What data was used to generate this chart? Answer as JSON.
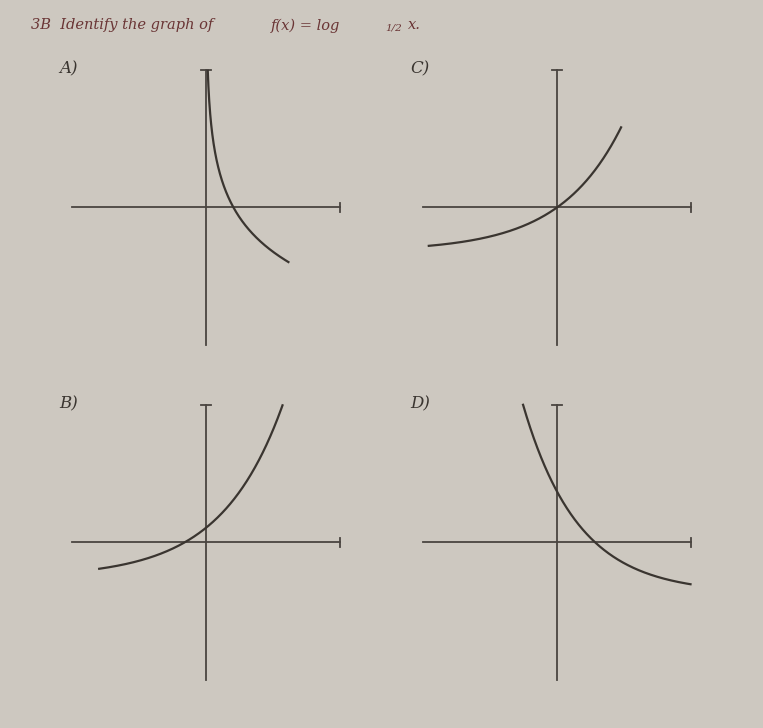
{
  "bg_color": "#cdc8c0",
  "curve_color": "#3a3530",
  "axis_color": "#4a4540",
  "title_line1": "3B  Identify the graph of f(x) = log",
  "title_sub": "1/2",
  "title_line2": "x.",
  "title_color": "#6a3535",
  "label_color": "#3a3530",
  "figsize": [
    7.63,
    7.28
  ],
  "panels": [
    {
      "label": "A)",
      "type": "A",
      "row": 1,
      "col": 0
    },
    {
      "label": "C)",
      "type": "C",
      "row": 1,
      "col": 1
    },
    {
      "label": "B)",
      "type": "B",
      "row": 0,
      "col": 0
    },
    {
      "label": "D)",
      "type": "D",
      "row": 0,
      "col": 1
    }
  ]
}
